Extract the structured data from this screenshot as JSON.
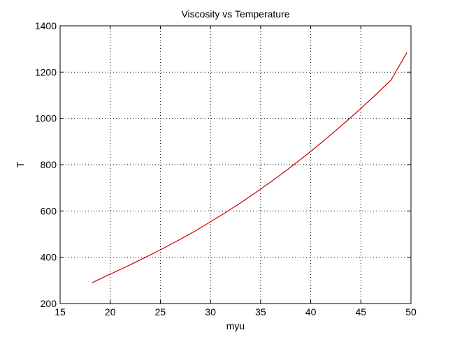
{
  "chart_data": {
    "type": "line",
    "title": "Viscosity vs Temperature",
    "xlabel": "myu",
    "ylabel": "T",
    "xlim": [
      15,
      50
    ],
    "ylim": [
      200,
      1400
    ],
    "xticks": [
      15,
      20,
      25,
      30,
      35,
      40,
      45,
      50
    ],
    "yticks": [
      200,
      400,
      600,
      800,
      1000,
      1200,
      1400
    ],
    "grid": true,
    "legend": "none",
    "series": [
      {
        "color": "#cc0000",
        "x": [
          18.2,
          19.5,
          21.0,
          22.5,
          24.0,
          25.5,
          27.0,
          28.5,
          30.0,
          31.5,
          33.0,
          34.5,
          36.0,
          37.5,
          39.0,
          40.5,
          42.0,
          43.5,
          45.0,
          46.5,
          48.0,
          49.6
        ],
        "y": [
          290,
          317,
          347,
          378,
          410,
          443,
          478,
          514,
          553,
          593,
          635,
          679,
          725,
          773,
          823,
          875,
          929,
          985,
          1043,
          1103,
          1165,
          1285
        ]
      }
    ]
  }
}
